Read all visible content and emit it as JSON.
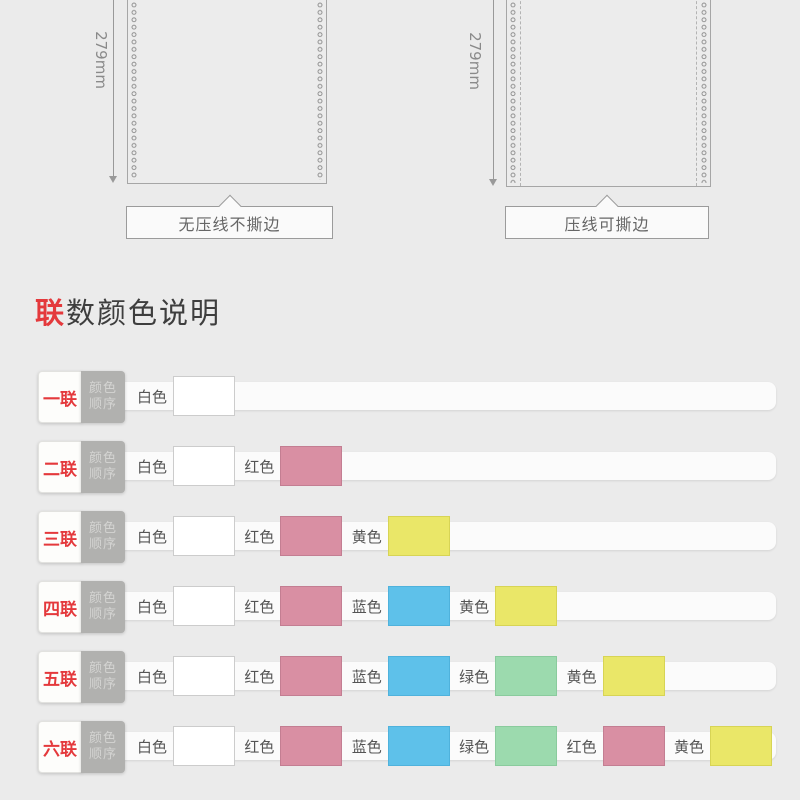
{
  "page": {
    "background": "#ebebeb"
  },
  "diagrams": [
    {
      "dimension": "279mm",
      "caption": "无压线不撕边",
      "tear_line": false
    },
    {
      "dimension": "279mm",
      "caption": "压线可撕边",
      "tear_line": true
    }
  ],
  "section": {
    "title_accent": "联",
    "title_rest": "数颜色说明"
  },
  "color_legend": {
    "badge_line1": "颜色",
    "badge_line2": "顺序",
    "swatch_colors": {
      "白色": {
        "fill": "#ffffff",
        "border": "#cccccc"
      },
      "红色": {
        "fill": "#d98fa3",
        "border": "#c37e92"
      },
      "蓝色": {
        "fill": "#5ec1ea",
        "border": "#4fb2dc"
      },
      "绿色": {
        "fill": "#9cdaae",
        "border": "#8acb9d"
      },
      "黄色": {
        "fill": "#eae768",
        "border": "#d7d455"
      }
    },
    "rows": [
      {
        "label": "一联",
        "colors": [
          "白色"
        ]
      },
      {
        "label": "二联",
        "colors": [
          "白色",
          "红色"
        ]
      },
      {
        "label": "三联",
        "colors": [
          "白色",
          "红色",
          "黄色"
        ]
      },
      {
        "label": "四联",
        "colors": [
          "白色",
          "红色",
          "蓝色",
          "黄色"
        ]
      },
      {
        "label": "五联",
        "colors": [
          "白色",
          "红色",
          "蓝色",
          "绿色",
          "黄色"
        ]
      },
      {
        "label": "六联",
        "colors": [
          "白色",
          "红色",
          "蓝色",
          "绿色",
          "红色",
          "黄色"
        ]
      }
    ]
  }
}
